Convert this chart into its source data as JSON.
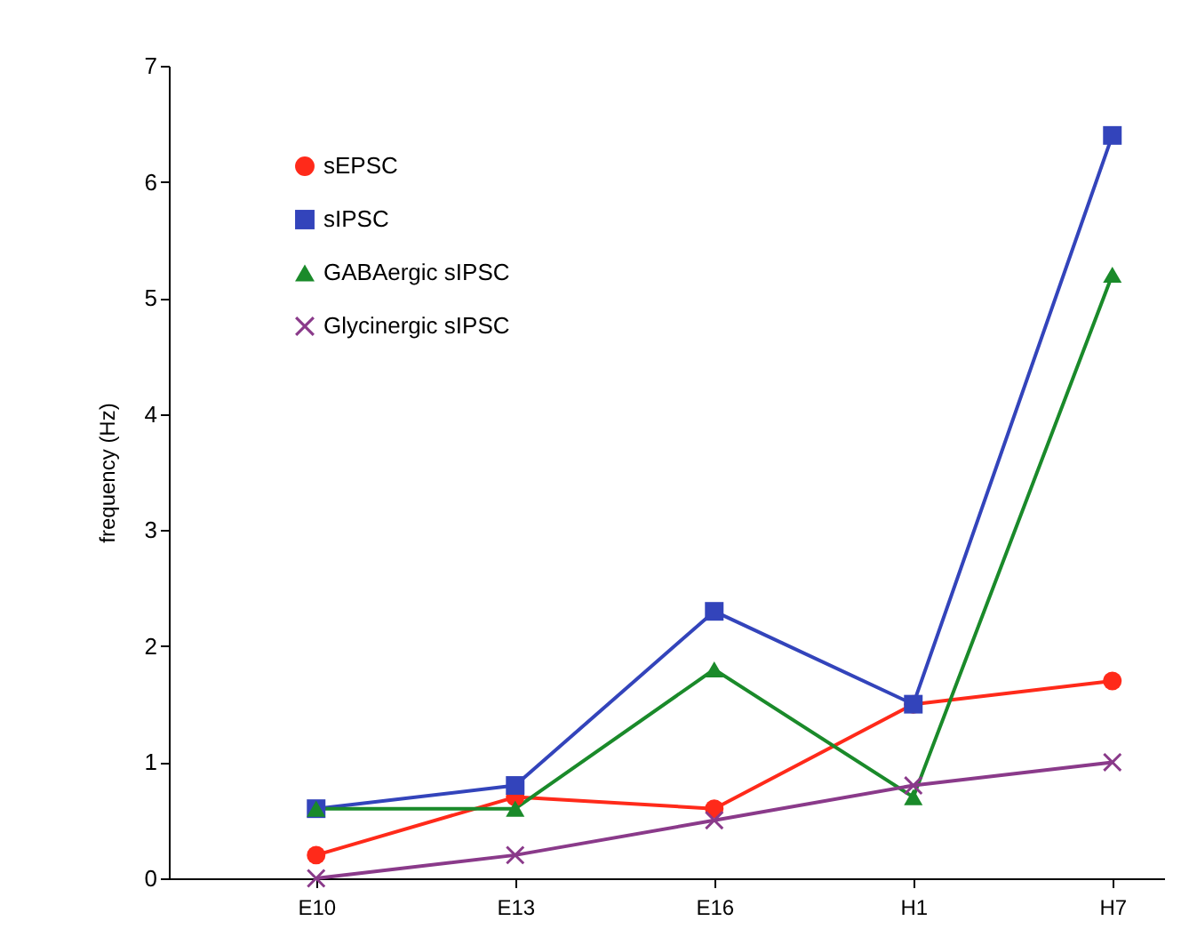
{
  "chart_data": {
    "type": "line",
    "ylabel": "frequency  (Hz)",
    "categories": [
      "E10",
      "E13",
      "E16",
      "H1",
      "H7"
    ],
    "series": [
      {
        "name": "sEPSC",
        "color": "#ff2a1a",
        "marker": "circle",
        "values": [
          0.2,
          0.7,
          0.6,
          1.5,
          1.7
        ]
      },
      {
        "name": "sIPSC",
        "color": "#3344bb",
        "marker": "square",
        "values": [
          0.6,
          0.8,
          2.3,
          1.5,
          6.4
        ]
      },
      {
        "name": "GABAergic sIPSC",
        "color": "#1a8a2a",
        "marker": "triangle",
        "values": [
          0.6,
          0.6,
          1.8,
          0.7,
          5.2
        ]
      },
      {
        "name": "Glycinergic sIPSC",
        "color": "#8a3a8a",
        "marker": "cross",
        "values": [
          0,
          0.2,
          0.5,
          0.8,
          1.0
        ]
      }
    ],
    "ylim": [
      0,
      7
    ],
    "yticks": [
      0,
      1,
      2,
      3,
      4,
      5,
      6,
      7
    ],
    "grid": false,
    "legend": "top left",
    "line_style": "solid"
  }
}
